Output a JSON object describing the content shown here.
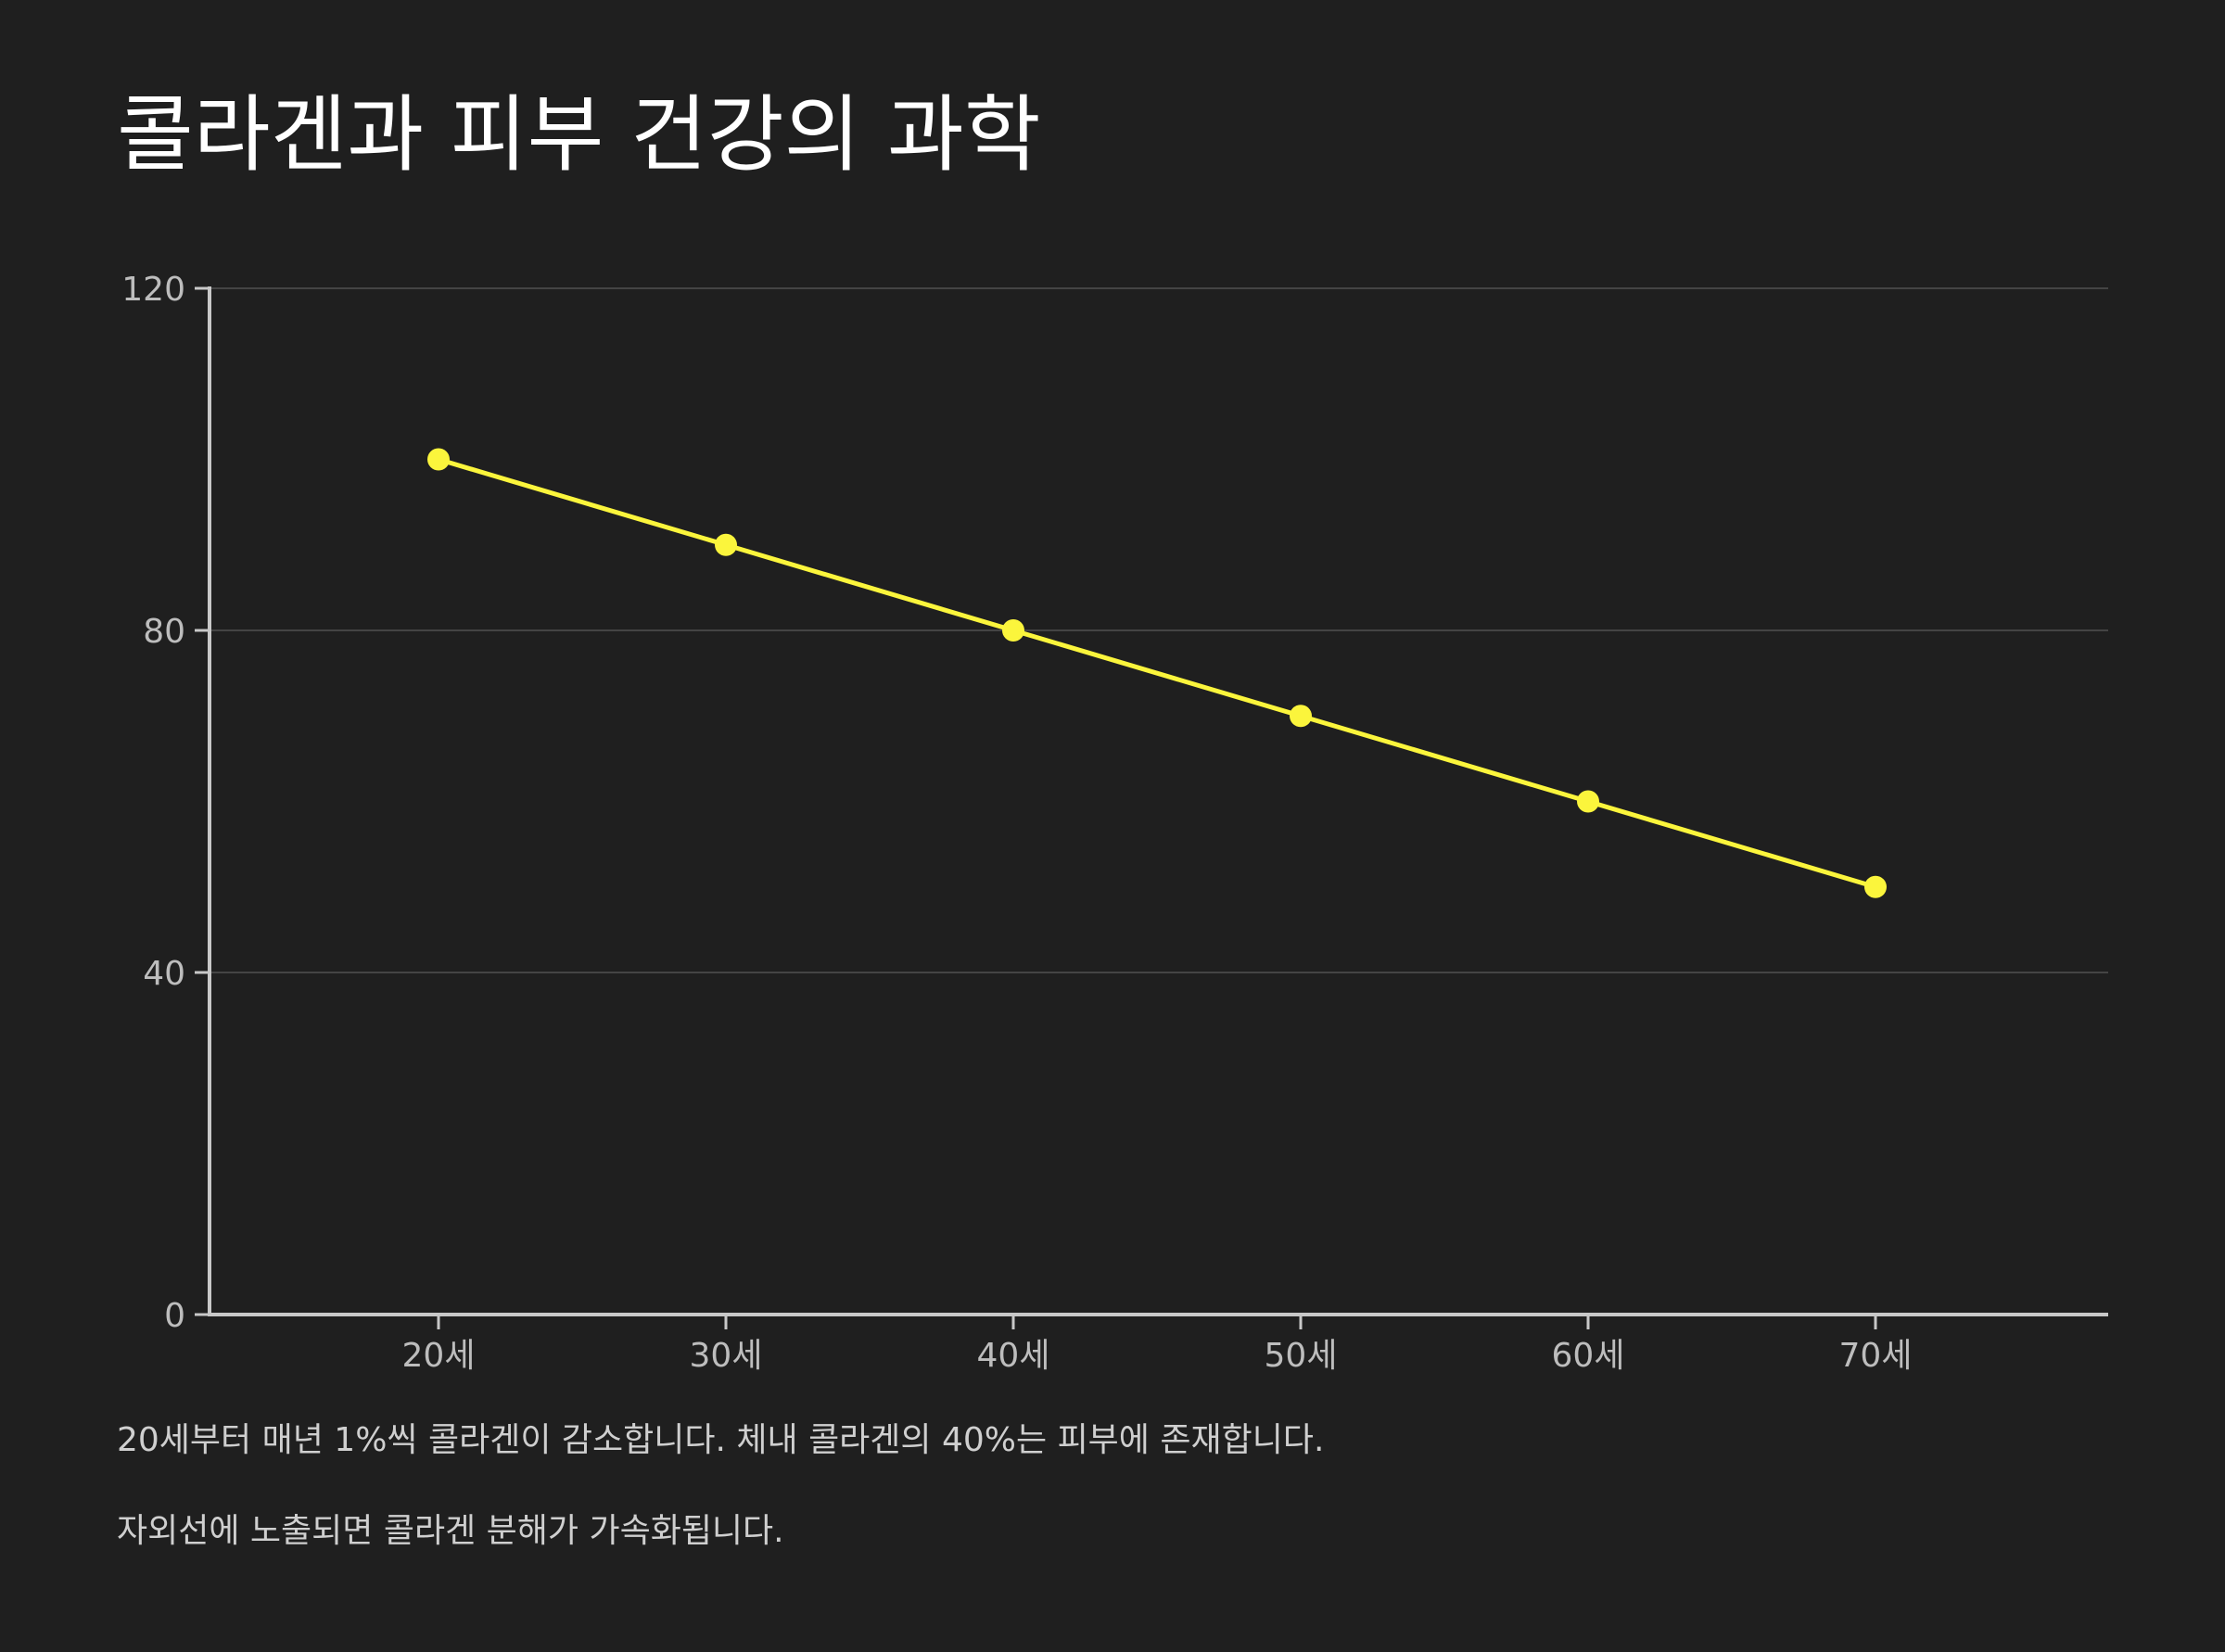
{
  "title": "콜라겐과 피부 건강의 과학",
  "notes": [
    "20세부터 매년 1%씩 콜라겐이 감소합니다. 체내 콜라겐의 40%는 피부에 존재합니다.",
    "자외선에 노출되면 콜라겐 분해가 가속화됩니다."
  ],
  "colors": {
    "background": "#1f1f1f",
    "line": "#fbf53c",
    "grid": "#444444",
    "axis": "#c8c8c8",
    "tick_text": "#bdbdbd"
  },
  "chart_data": {
    "type": "line",
    "categories": [
      "20세",
      "30세",
      "40세",
      "50세",
      "60세",
      "70세"
    ],
    "series": [
      {
        "values": [
          100,
          90,
          80,
          70,
          60,
          50
        ]
      }
    ],
    "yticks": [
      "0",
      "40",
      "80",
      "120"
    ],
    "ylim": [
      0,
      120
    ],
    "grid": true,
    "legend": "none",
    "xlabel": "",
    "ylabel": ""
  }
}
